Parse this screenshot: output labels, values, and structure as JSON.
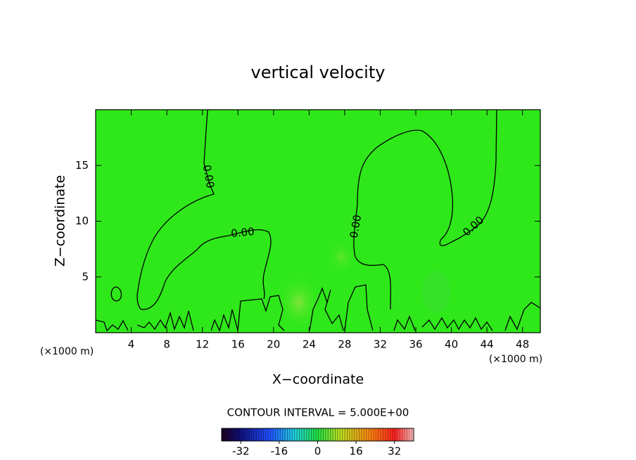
{
  "chart_data": {
    "type": "contour",
    "title": "vertical velocity",
    "x_label": "X−coordinate",
    "y_label": "Z−coordinate",
    "x_unit": "(×1000 m)",
    "y_unit": "(×1000 m)",
    "xlim": [
      0,
      50
    ],
    "xticks": [
      4,
      8,
      12,
      16,
      20,
      24,
      28,
      32,
      36,
      40,
      44,
      48
    ],
    "ylim": [
      0,
      20
    ],
    "yticks": [
      5,
      10,
      15
    ],
    "contour_labels": [
      "0.00",
      "0.00",
      "0.00",
      "0.00"
    ],
    "contour_interval": "CONTOUR INTERVAL = 5.000E+00",
    "colorbar": {
      "lim": [
        -40,
        40
      ],
      "ticks": [
        -32,
        -16,
        0,
        16,
        32
      ]
    }
  }
}
